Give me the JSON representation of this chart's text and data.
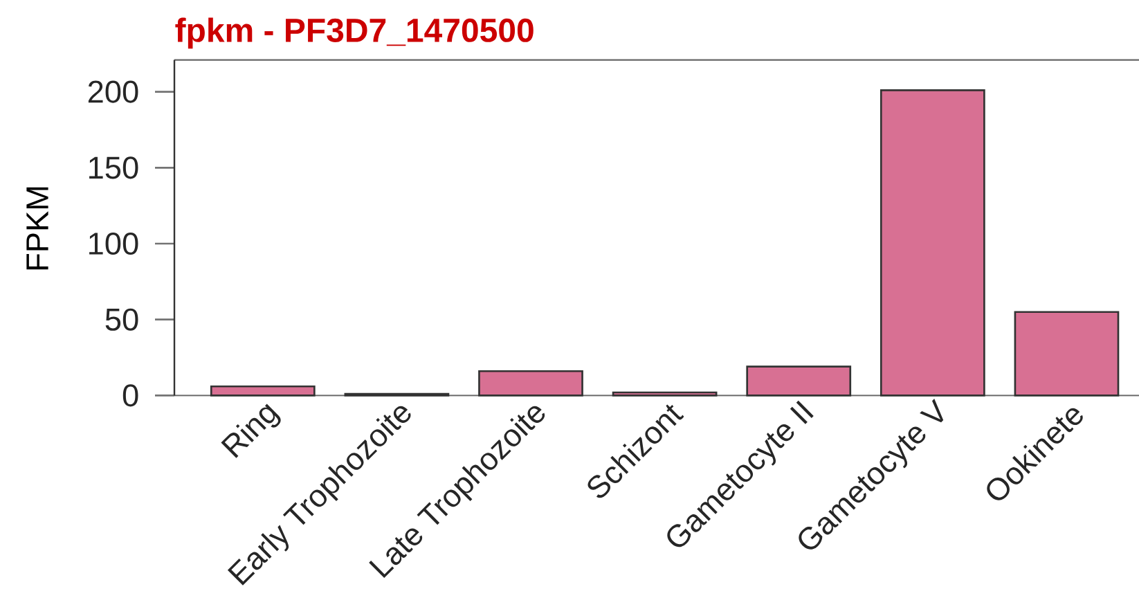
{
  "chart_data": {
    "type": "bar",
    "title": "fpkm - PF3D7_1470500",
    "ylabel": "FPKM",
    "categories": [
      "Ring",
      "Early Trophozoite",
      "Late Trophozoite",
      "Schizont",
      "Gametocyte II",
      "Gametocyte V",
      "Ookinete"
    ],
    "values": [
      6,
      1,
      16,
      2,
      19,
      201,
      55
    ],
    "color": "#d87093",
    "ylim": [
      0,
      221
    ],
    "yticks": [
      0,
      50,
      100,
      150,
      200
    ]
  }
}
